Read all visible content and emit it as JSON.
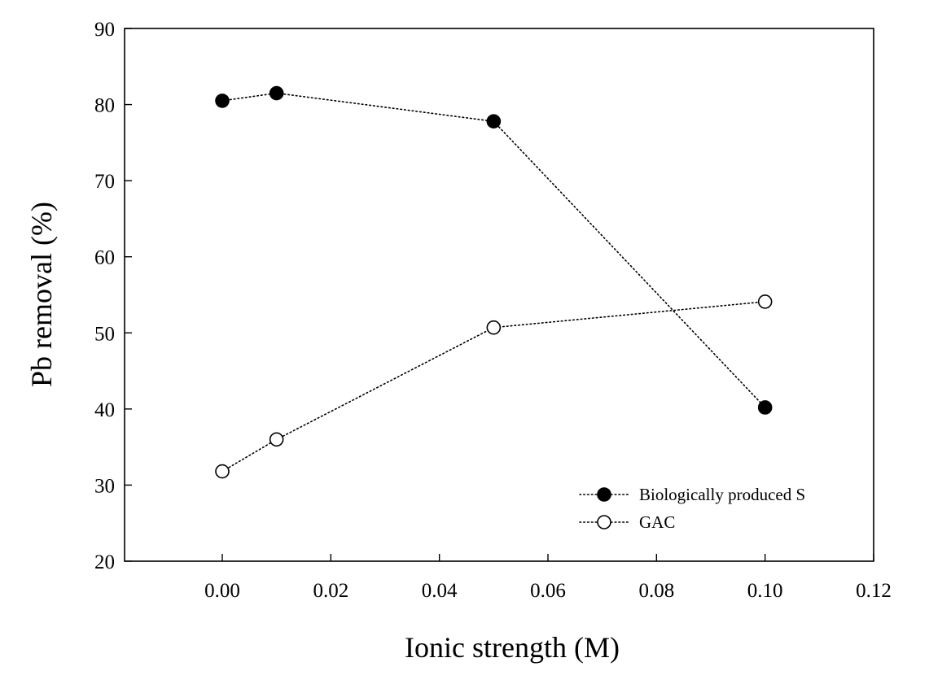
{
  "chart_data": {
    "type": "line",
    "title": "",
    "xlabel": "Ionic strength (M)",
    "ylabel": "Pb removal (%)",
    "xlim": [
      -0.018,
      0.12
    ],
    "ylim": [
      20,
      90
    ],
    "xticks": [
      0.0,
      0.02,
      0.04,
      0.06,
      0.08,
      0.1,
      0.12
    ],
    "xtick_labels": [
      "0.00",
      "0.02",
      "0.04",
      "0.06",
      "0.08",
      "0.10",
      "0.12"
    ],
    "yticks": [
      20,
      30,
      40,
      50,
      60,
      70,
      80,
      90
    ],
    "ytick_labels": [
      "20",
      "30",
      "40",
      "50",
      "60",
      "70",
      "80",
      "90"
    ],
    "grid": false,
    "legend_position": "bottom-right",
    "line_style": "dotted",
    "series": [
      {
        "name": "Biologically produced S",
        "marker": "filled-circle",
        "color": "#000000",
        "x": [
          0.0,
          0.01,
          0.05,
          0.1
        ],
        "y": [
          80.5,
          81.5,
          77.8,
          40.2
        ]
      },
      {
        "name": "GAC",
        "marker": "open-circle",
        "color": "#000000",
        "x": [
          0.0,
          0.01,
          0.05,
          0.1
        ],
        "y": [
          31.8,
          36.0,
          50.7,
          54.1
        ]
      }
    ]
  }
}
